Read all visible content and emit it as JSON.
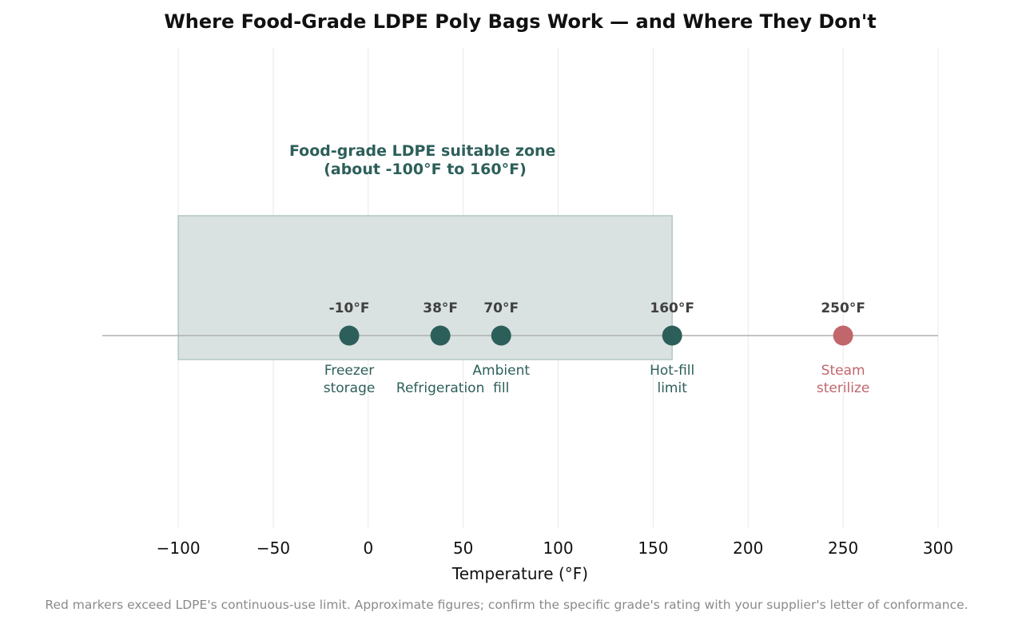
{
  "chart_data": {
    "type": "scatter",
    "title": "Where Food-Grade LDPE Poly Bags Work — and Where They Don't",
    "xlabel": "Temperature (°F)",
    "ylabel": "",
    "xlim": [
      -140,
      300
    ],
    "x_ticks": [
      -100,
      -50,
      0,
      50,
      100,
      150,
      200,
      250,
      300
    ],
    "x_tick_labels": [
      "−100",
      "−50",
      "0",
      "50",
      "100",
      "150",
      "200",
      "250",
      "300"
    ],
    "grid": "vertical",
    "zone": {
      "x_start": -100,
      "x_end": 160,
      "label_lines": [
        "Food-grade LDPE suitable zone",
        "(about -100°F to 160°F)"
      ],
      "fill_color": "#d9e2e1",
      "edge_color": "#b3c7c3",
      "label_color": "#2d5f5a"
    },
    "points": [
      {
        "x": -10,
        "value_label": "-10°F",
        "label_lines": [
          "Freezer",
          "storage"
        ],
        "status": "ok"
      },
      {
        "x": 38,
        "value_label": "38°F",
        "label_lines": [
          "Refrigeration"
        ],
        "status": "ok"
      },
      {
        "x": 70,
        "value_label": "70°F",
        "label_lines": [
          "Ambient",
          "fill"
        ],
        "status": "ok"
      },
      {
        "x": 160,
        "value_label": "160°F",
        "label_lines": [
          "Hot-fill",
          "limit"
        ],
        "status": "ok"
      },
      {
        "x": 250,
        "value_label": "250°F",
        "label_lines": [
          "Steam",
          "sterilize"
        ],
        "status": "exceeds"
      }
    ],
    "colors": {
      "ok": "#2d5f5a",
      "exceeds": "#c1666b",
      "baseline": "#b0b0b0",
      "grid": "#e8e8e8"
    }
  },
  "footnote": "Red markers exceed LDPE's continuous-use limit. Approximate figures; confirm the specific grade's rating with your supplier's letter of conformance."
}
